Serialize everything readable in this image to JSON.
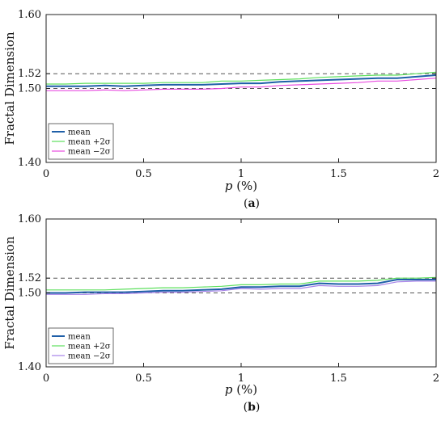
{
  "chart_data": [
    {
      "type": "line",
      "caption": "(a)",
      "xlabel": "p (%)",
      "ylabel": "Fractal Dimension",
      "xlim": [
        0,
        2
      ],
      "ylim": [
        1.4,
        1.6
      ],
      "xticks": [
        "0",
        "0.5",
        "1",
        "1.5",
        "2"
      ],
      "yticks": [
        "1.40",
        "1.50",
        "1.52",
        "1.60"
      ],
      "reference_lines": [
        1.5,
        1.52
      ],
      "legend_position": "bottom-left",
      "x": [
        0,
        0.1,
        0.2,
        0.3,
        0.4,
        0.5,
        0.6,
        0.7,
        0.8,
        0.9,
        1.0,
        1.1,
        1.2,
        1.3,
        1.4,
        1.5,
        1.6,
        1.7,
        1.8,
        1.9,
        2.0
      ],
      "series": [
        {
          "name": "mean",
          "color": "#1f5fa8",
          "values": [
            1.503,
            1.503,
            1.503,
            1.504,
            1.503,
            1.504,
            1.505,
            1.505,
            1.505,
            1.506,
            1.507,
            1.507,
            1.509,
            1.51,
            1.511,
            1.512,
            1.513,
            1.514,
            1.514,
            1.516,
            1.518
          ]
        },
        {
          "name": "mean +2σ",
          "color": "#5ee05e",
          "values": [
            1.506,
            1.506,
            1.507,
            1.507,
            1.507,
            1.507,
            1.508,
            1.508,
            1.508,
            1.51,
            1.51,
            1.511,
            1.512,
            1.513,
            1.515,
            1.516,
            1.517,
            1.518,
            1.518,
            1.52,
            1.522
          ]
        },
        {
          "name": "mean −2σ",
          "color": "#e84be0",
          "values": [
            1.497,
            1.497,
            1.497,
            1.498,
            1.497,
            1.498,
            1.499,
            1.499,
            1.499,
            1.5,
            1.502,
            1.502,
            1.504,
            1.505,
            1.506,
            1.507,
            1.508,
            1.51,
            1.51,
            1.512,
            1.514
          ]
        }
      ]
    },
    {
      "type": "line",
      "caption": "(b)",
      "xlabel": "p (%)",
      "ylabel": "Fractal Dimension",
      "xlim": [
        0,
        2
      ],
      "ylim": [
        1.4,
        1.6
      ],
      "xticks": [
        "0",
        "0.5",
        "1",
        "1.5",
        "2"
      ],
      "yticks": [
        "1.40",
        "1.50",
        "1.52",
        "1.60"
      ],
      "reference_lines": [
        1.5,
        1.52
      ],
      "legend_position": "bottom-left",
      "x": [
        0,
        0.1,
        0.2,
        0.3,
        0.4,
        0.5,
        0.6,
        0.7,
        0.8,
        0.9,
        1.0,
        1.1,
        1.2,
        1.3,
        1.4,
        1.5,
        1.6,
        1.7,
        1.8,
        1.9,
        2.0
      ],
      "series": [
        {
          "name": "mean",
          "color": "#1f5fa8",
          "values": [
            1.5,
            1.5,
            1.501,
            1.501,
            1.501,
            1.502,
            1.503,
            1.503,
            1.504,
            1.505,
            1.508,
            1.508,
            1.509,
            1.509,
            1.513,
            1.512,
            1.512,
            1.513,
            1.518,
            1.518,
            1.518
          ]
        },
        {
          "name": "mean +2σ",
          "color": "#5ee05e",
          "values": [
            1.504,
            1.504,
            1.504,
            1.504,
            1.505,
            1.506,
            1.507,
            1.507,
            1.508,
            1.509,
            1.511,
            1.511,
            1.512,
            1.512,
            1.516,
            1.516,
            1.516,
            1.517,
            1.52,
            1.52,
            1.521
          ]
        },
        {
          "name": "mean −2σ",
          "color": "#a682e8",
          "values": [
            1.498,
            1.498,
            1.498,
            1.499,
            1.499,
            1.5,
            1.501,
            1.501,
            1.502,
            1.503,
            1.506,
            1.505,
            1.506,
            1.506,
            1.51,
            1.509,
            1.509,
            1.51,
            1.515,
            1.516,
            1.516
          ]
        }
      ]
    }
  ]
}
